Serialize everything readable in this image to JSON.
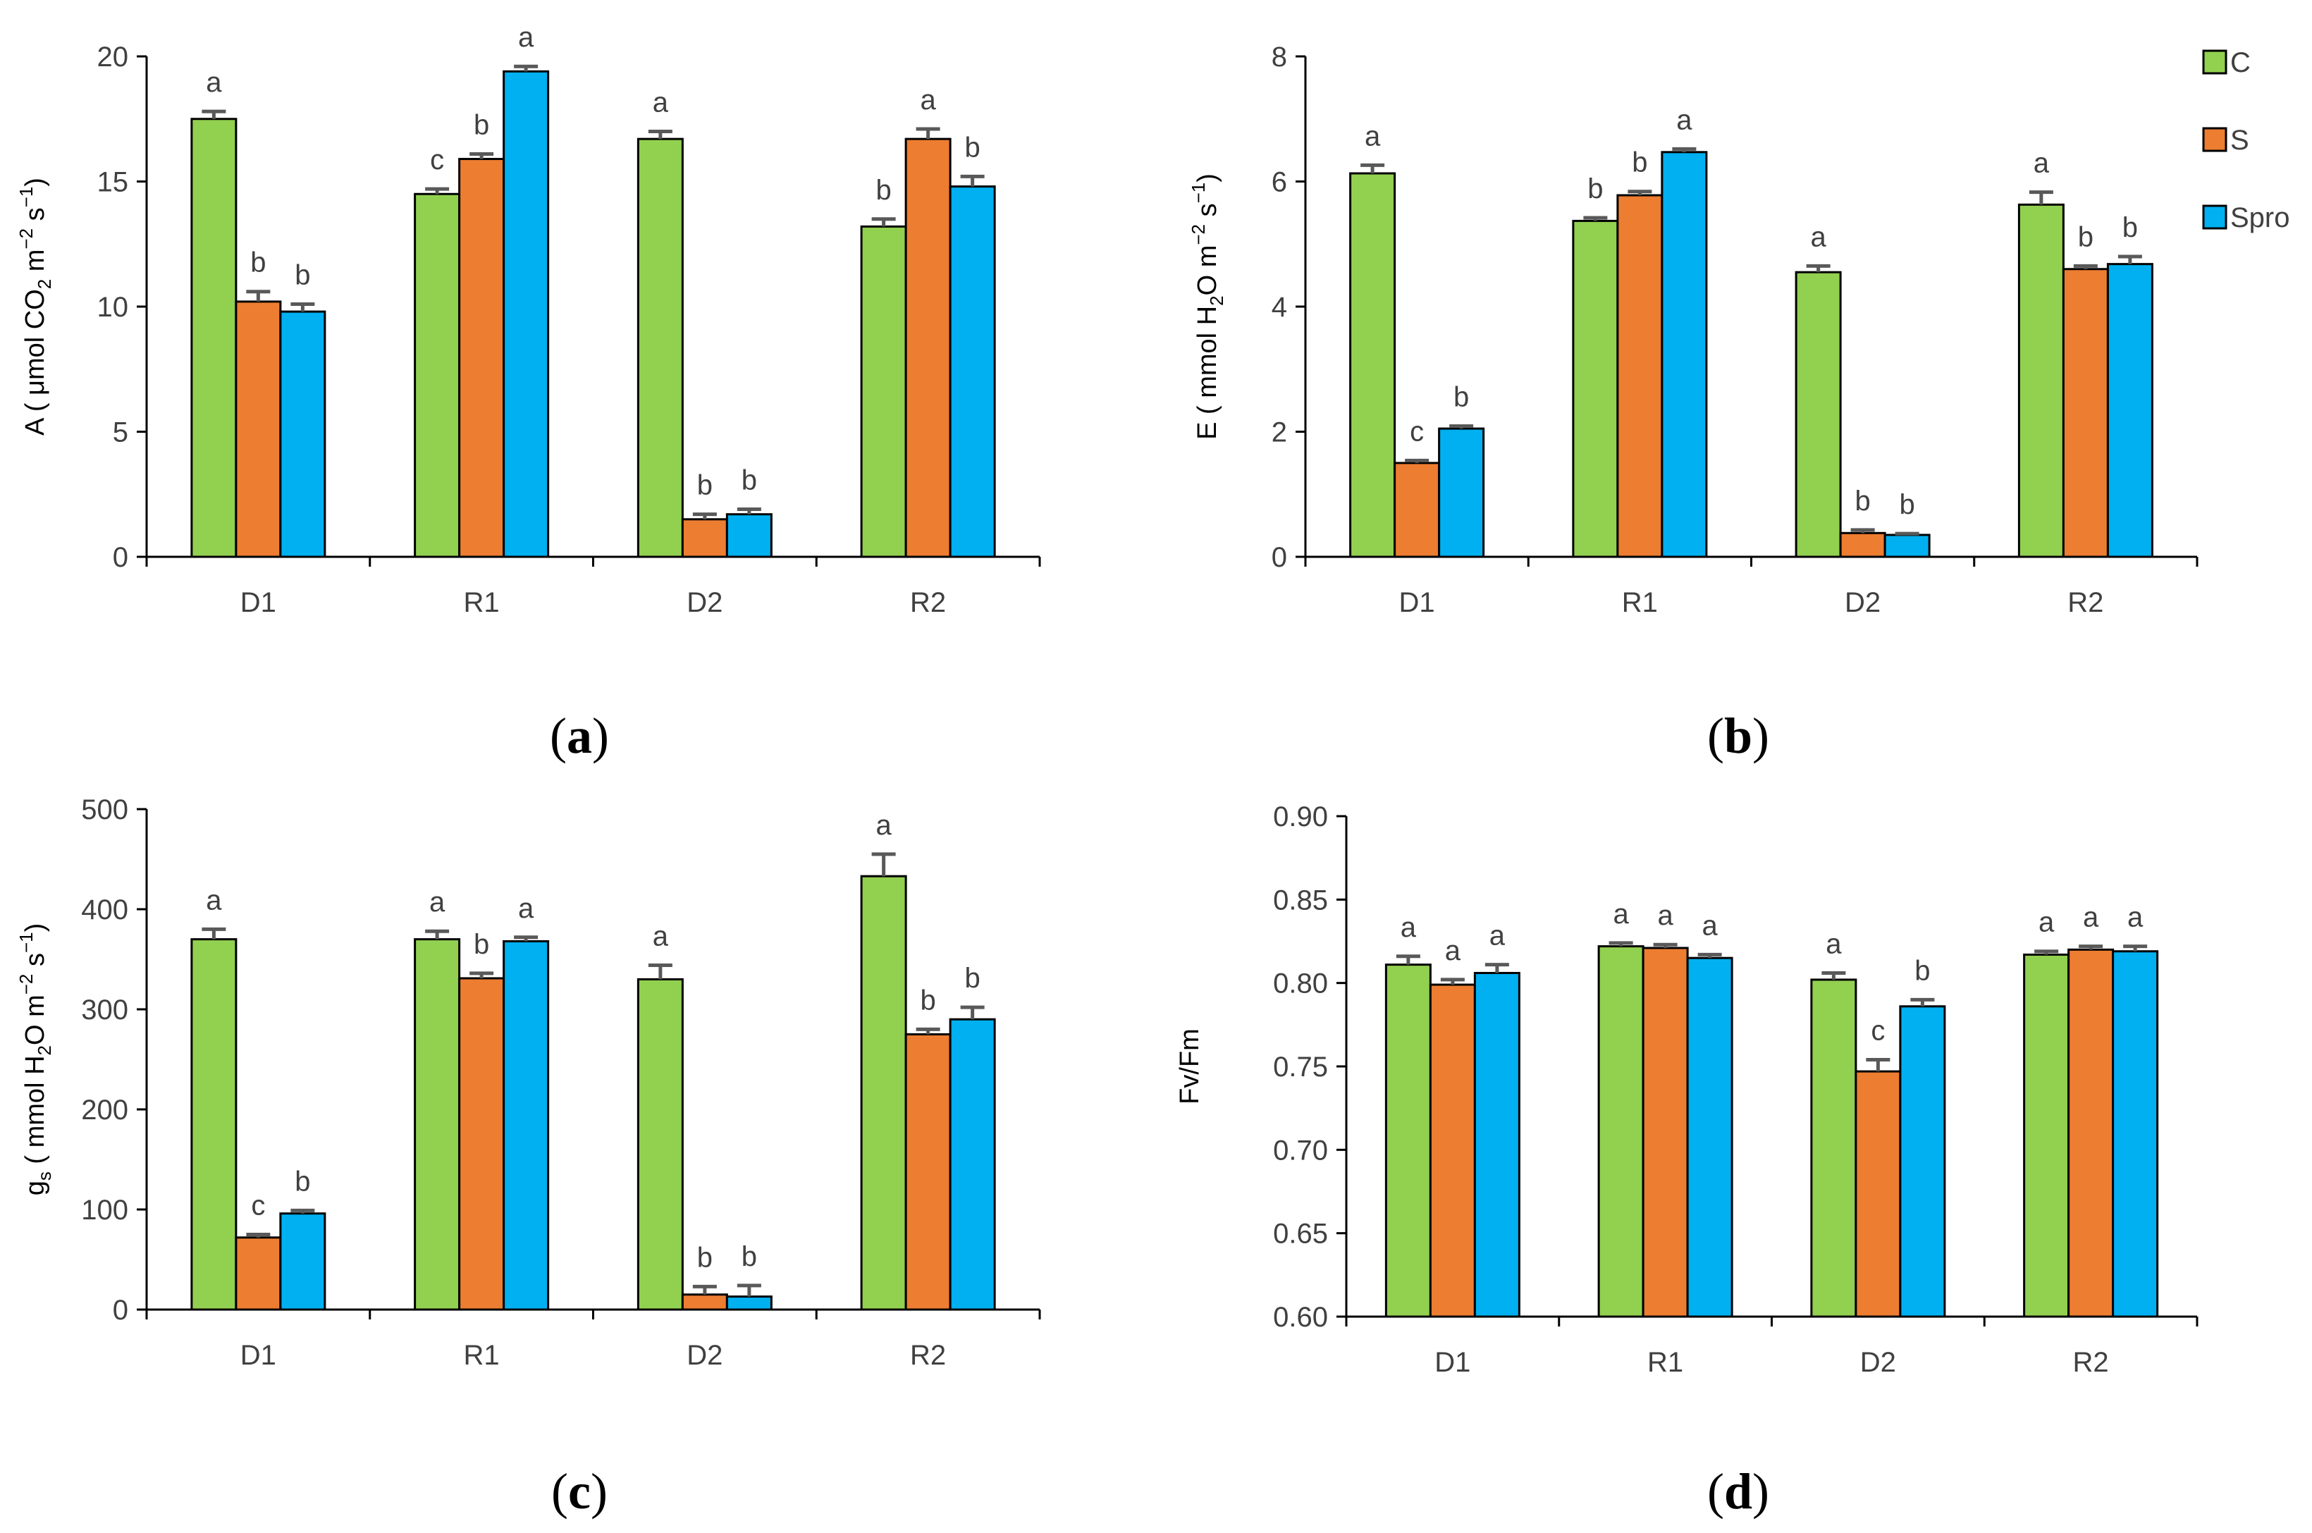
{
  "colors": {
    "C": "#92d050",
    "S": "#ed7d31",
    "Spro": "#00b0f0",
    "axis": "#000000",
    "error": "#595959"
  },
  "legend": {
    "items": [
      "C",
      "S",
      "Spro"
    ]
  },
  "chart_data": [
    {
      "panel": "(a)",
      "panel_letter": "a",
      "type": "bar",
      "ylabel_main": "A ( μmol CO",
      "ylabel_sub": "2",
      "ylabel_unit": " m",
      "ylabel_sup1": "−2",
      "ylabel_s": " s",
      "ylabel_sup2": "−1",
      "ylabel_end": ")",
      "ylim": [
        0,
        20
      ],
      "ticks": [
        0,
        5,
        10,
        15,
        20
      ],
      "tick_labels": [
        "0",
        "5",
        "10",
        "15",
        "20"
      ],
      "categories": [
        "D1",
        "R1",
        "D2",
        "R2"
      ],
      "series": [
        {
          "name": "C",
          "values": [
            17.5,
            14.5,
            16.7,
            13.2
          ],
          "errors": [
            0.3,
            0.2,
            0.3,
            0.3
          ],
          "letters": [
            "a",
            "c",
            "a",
            "b"
          ]
        },
        {
          "name": "S",
          "values": [
            10.2,
            15.9,
            1.5,
            16.7
          ],
          "errors": [
            0.4,
            0.2,
            0.2,
            0.4
          ],
          "letters": [
            "b",
            "b",
            "b",
            "a"
          ]
        },
        {
          "name": "Spro",
          "values": [
            9.8,
            19.4,
            1.7,
            14.8
          ],
          "errors": [
            0.3,
            0.2,
            0.2,
            0.4
          ],
          "letters": [
            "b",
            "a",
            "b",
            "b"
          ]
        }
      ]
    },
    {
      "panel": "(b)",
      "panel_letter": "b",
      "type": "bar",
      "ylabel_main": "E ( mmol H",
      "ylabel_sub": "2",
      "ylabel_unit": "O m",
      "ylabel_sup1": "−2",
      "ylabel_s": " s",
      "ylabel_sup2": "−1",
      "ylabel_end": ")",
      "ylim": [
        0,
        8
      ],
      "ticks": [
        0,
        2,
        4,
        6,
        8
      ],
      "tick_labels": [
        "0",
        "2",
        "4",
        "6",
        "8"
      ],
      "categories": [
        "D1",
        "R1",
        "D2",
        "R2"
      ],
      "series": [
        {
          "name": "C",
          "values": [
            6.13,
            5.37,
            4.55,
            5.63
          ],
          "errors": [
            0.13,
            0.05,
            0.1,
            0.2
          ],
          "letters": [
            "a",
            "b",
            "a",
            "a"
          ]
        },
        {
          "name": "S",
          "values": [
            1.5,
            5.78,
            0.38,
            4.6
          ],
          "errors": [
            0.04,
            0.06,
            0.05,
            0.05
          ],
          "letters": [
            "c",
            "b",
            "b",
            "b"
          ]
        },
        {
          "name": "Spro",
          "values": [
            2.05,
            6.47,
            0.35,
            4.68
          ],
          "errors": [
            0.04,
            0.05,
            0.02,
            0.12
          ],
          "letters": [
            "b",
            "a",
            "b",
            "b"
          ]
        }
      ]
    },
    {
      "panel": "(c)",
      "panel_letter": "c",
      "type": "bar",
      "ylabel_main": "g",
      "ylabel_sub": "s",
      "ylabel_unit": " ( mmol H",
      "ylabel_sub2": "2",
      "ylabel_unit2": "O m",
      "ylabel_sup1": "−2",
      "ylabel_s": " s",
      "ylabel_sup2": "−1",
      "ylabel_end": ")",
      "ylim": [
        0,
        500
      ],
      "ticks": [
        0,
        100,
        200,
        300,
        400,
        500
      ],
      "tick_labels": [
        "0",
        "100",
        "200",
        "300",
        "400",
        "500"
      ],
      "categories": [
        "D1",
        "R1",
        "D2",
        "R2"
      ],
      "series": [
        {
          "name": "C",
          "values": [
            370,
            370,
            330,
            433
          ],
          "errors": [
            10,
            8,
            14,
            22
          ],
          "letters": [
            "a",
            "a",
            "a",
            "a"
          ]
        },
        {
          "name": "S",
          "values": [
            72,
            331,
            15,
            275
          ],
          "errors": [
            3,
            5,
            8,
            5
          ],
          "letters": [
            "c",
            "b",
            "b",
            "b"
          ]
        },
        {
          "name": "Spro",
          "values": [
            96,
            368,
            13,
            290
          ],
          "errors": [
            3,
            4,
            11,
            12
          ],
          "letters": [
            "b",
            "a",
            "b",
            "b"
          ]
        }
      ]
    },
    {
      "panel": "(d)",
      "panel_letter": "d",
      "type": "bar",
      "ylabel_plain": "Fv/Fm",
      "ylim": [
        0.6,
        0.9
      ],
      "ticks": [
        0.6,
        0.65,
        0.7,
        0.75,
        0.8,
        0.85,
        0.9
      ],
      "tick_labels": [
        "0.60",
        "0.65",
        "0.70",
        "0.75",
        "0.80",
        "0.85",
        "0.90"
      ],
      "categories": [
        "D1",
        "R1",
        "D2",
        "R2"
      ],
      "series": [
        {
          "name": "C",
          "values": [
            0.811,
            0.822,
            0.802,
            0.817
          ],
          "errors": [
            0.005,
            0.002,
            0.004,
            0.002
          ],
          "letters": [
            "a",
            "a",
            "a",
            "a"
          ]
        },
        {
          "name": "S",
          "values": [
            0.799,
            0.821,
            0.747,
            0.82
          ],
          "errors": [
            0.003,
            0.002,
            0.007,
            0.002
          ],
          "letters": [
            "a",
            "a",
            "c",
            "a"
          ]
        },
        {
          "name": "Spro",
          "values": [
            0.806,
            0.815,
            0.786,
            0.819
          ],
          "errors": [
            0.005,
            0.002,
            0.004,
            0.003
          ],
          "letters": [
            "a",
            "a",
            "b",
            "a"
          ]
        }
      ]
    }
  ]
}
